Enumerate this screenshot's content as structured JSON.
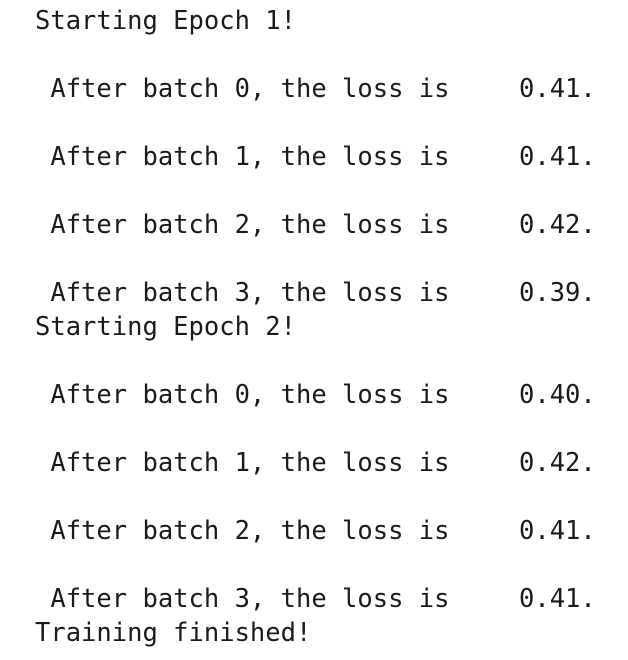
{
  "output": [
    {
      "kind": "header",
      "text": "Starting Epoch 1!"
    },
    {
      "kind": "blank"
    },
    {
      "kind": "batch",
      "text": " After batch 0, the loss is",
      "value": "0.41."
    },
    {
      "kind": "blank"
    },
    {
      "kind": "batch",
      "text": " After batch 1, the loss is",
      "value": "0.41."
    },
    {
      "kind": "blank"
    },
    {
      "kind": "batch",
      "text": " After batch 2, the loss is",
      "value": "0.42."
    },
    {
      "kind": "blank"
    },
    {
      "kind": "batch",
      "text": " After batch 3, the loss is",
      "value": "0.39."
    },
    {
      "kind": "header",
      "text": "Starting Epoch 2!"
    },
    {
      "kind": "blank"
    },
    {
      "kind": "batch",
      "text": " After batch 0, the loss is",
      "value": "0.40."
    },
    {
      "kind": "blank"
    },
    {
      "kind": "batch",
      "text": " After batch 1, the loss is",
      "value": "0.42."
    },
    {
      "kind": "blank"
    },
    {
      "kind": "batch",
      "text": " After batch 2, the loss is",
      "value": "0.41."
    },
    {
      "kind": "blank"
    },
    {
      "kind": "batch",
      "text": " After batch 3, the loss is",
      "value": "0.41."
    },
    {
      "kind": "footer",
      "text": "Training finished!"
    }
  ]
}
